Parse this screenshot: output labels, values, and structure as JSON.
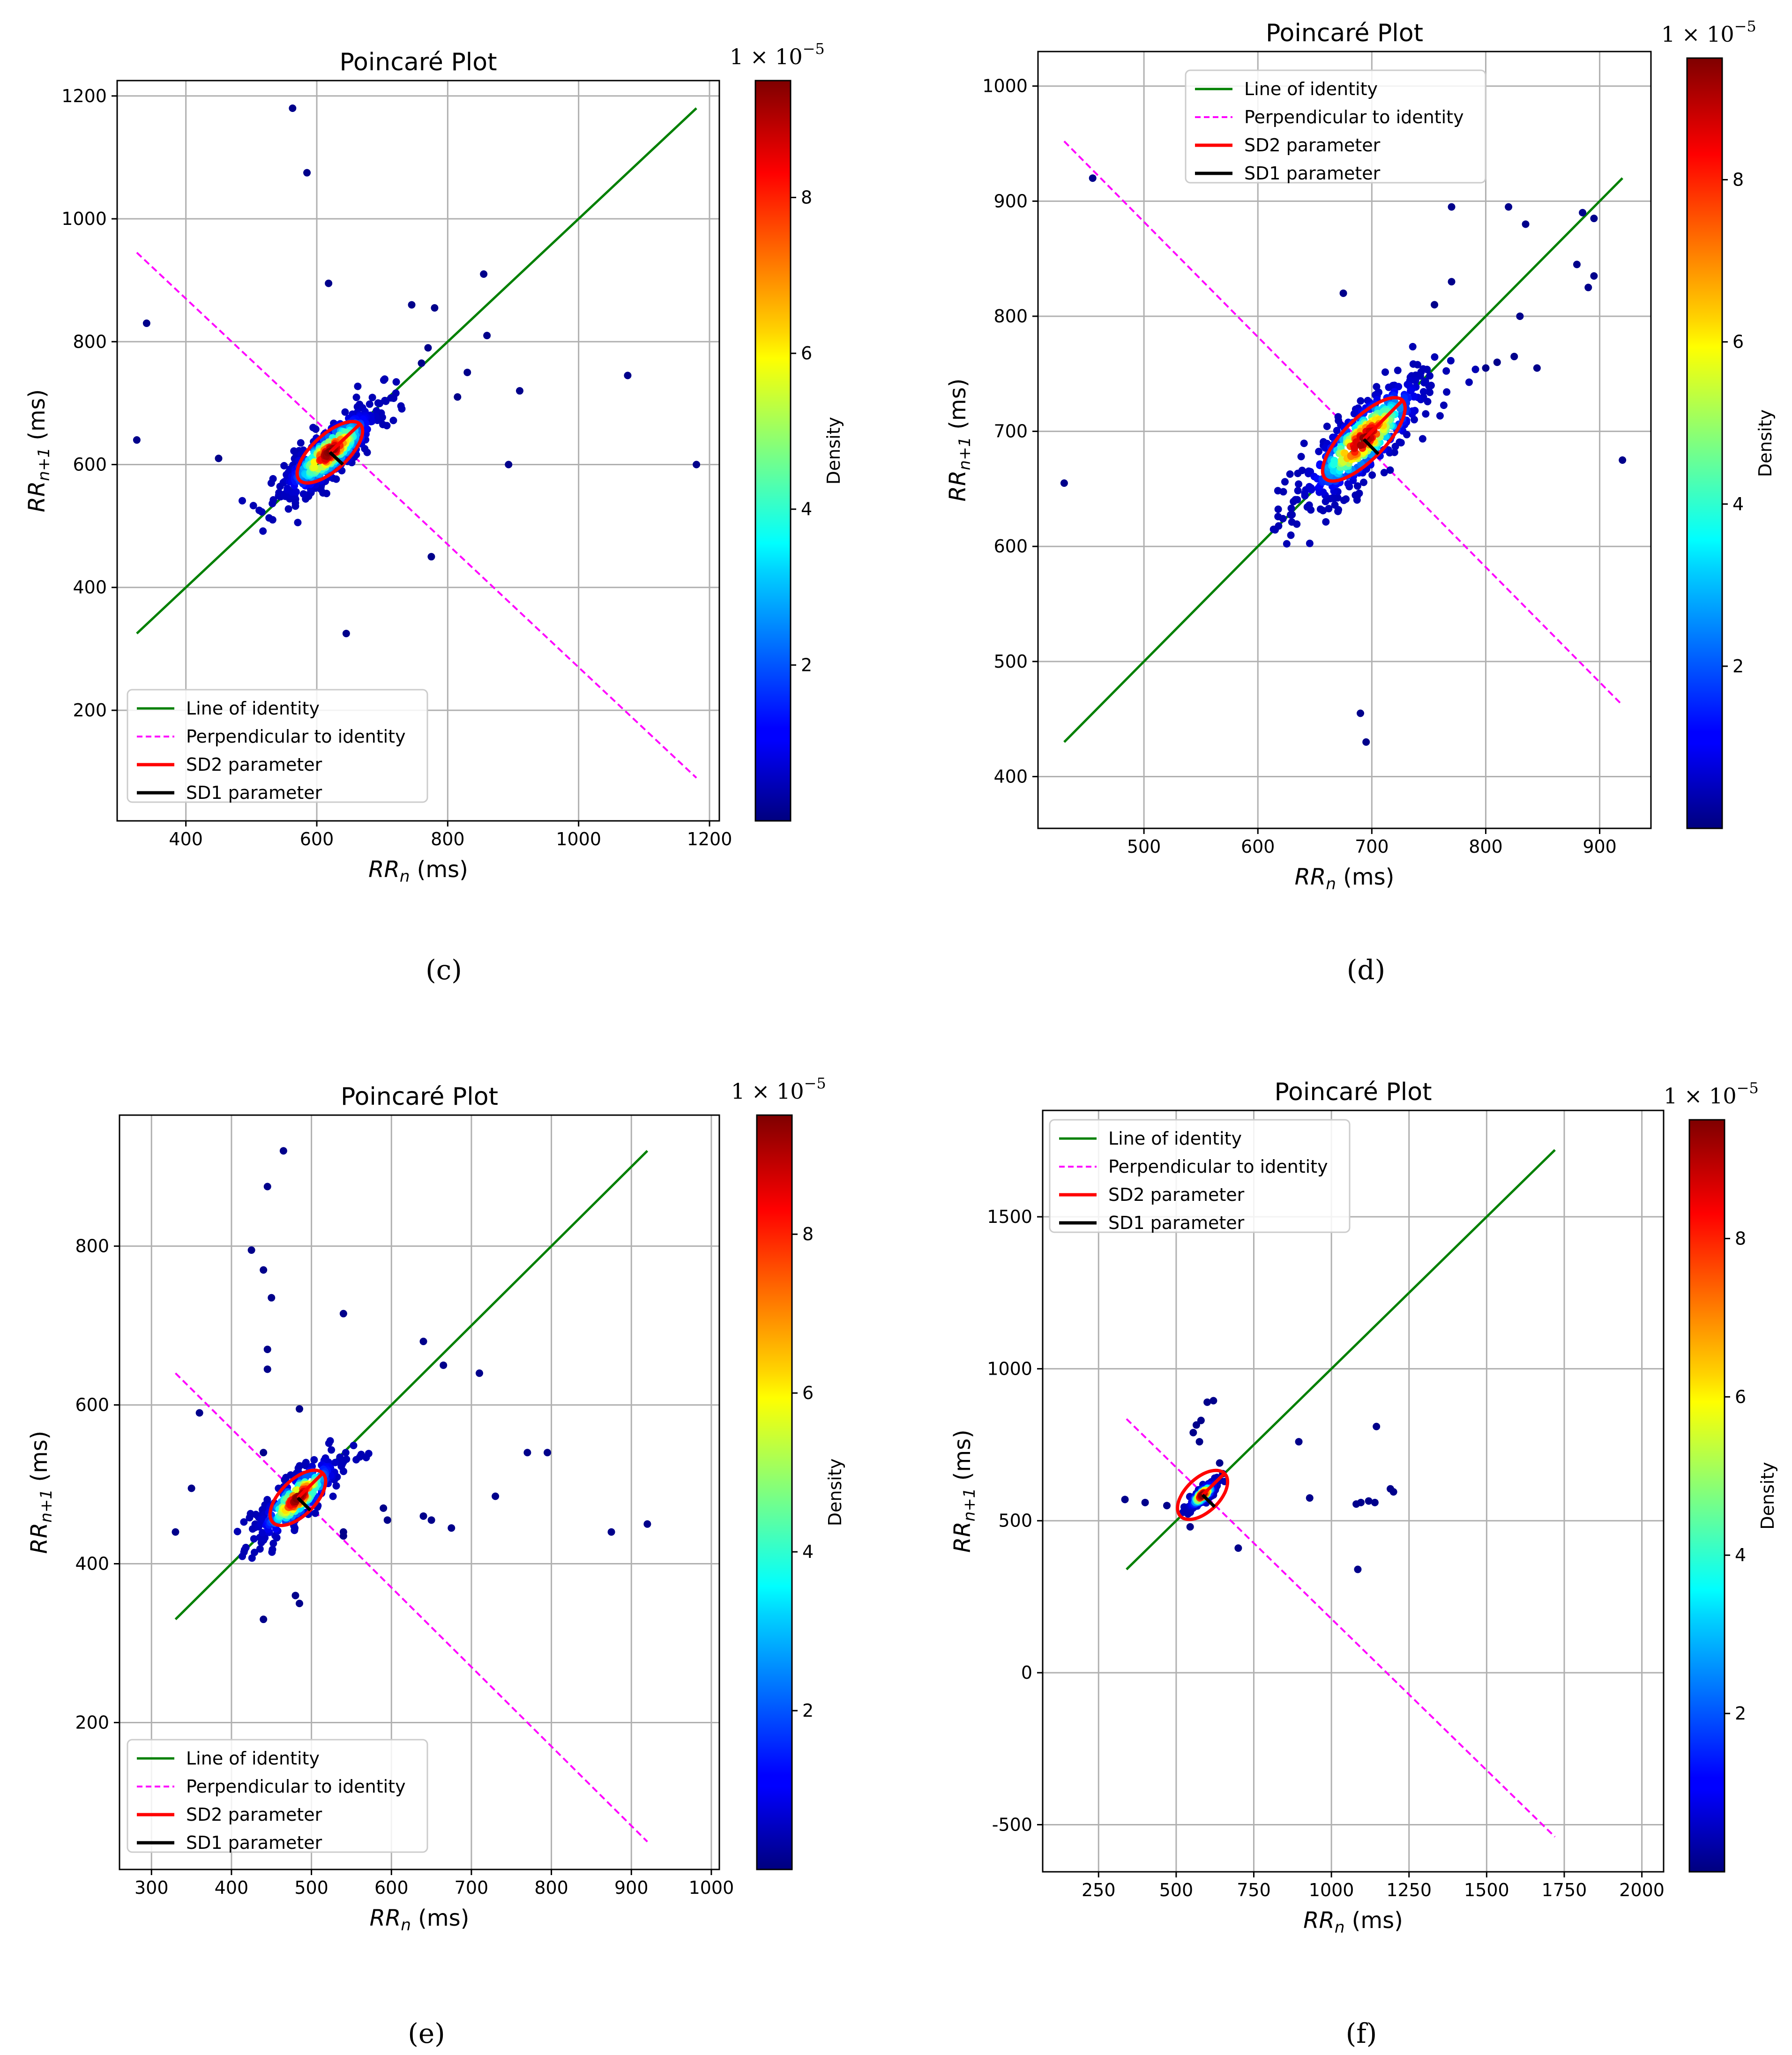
{
  "colorbar_ticks": [
    "2",
    "4",
    "6",
    "8"
  ],
  "colorbar_label": "Density",
  "colorbar_multiplier": "1 × 10",
  "colorbar_exponent": "−5",
  "chart_data": [
    {
      "type": "scatter",
      "panel_label": "(c)",
      "title": "Poincaré Plot",
      "xlabel_base": "RR",
      "xlabel_sub": "n",
      "xlabel_unit": " (ms)",
      "ylabel_base": "RR",
      "ylabel_sub": "n+1",
      "ylabel_unit": " (ms)",
      "xlim": [
        295,
        1215
      ],
      "ylim": [
        20,
        1225
      ],
      "xticks": [
        400,
        600,
        800,
        1000,
        1200
      ],
      "yticks": [
        200,
        400,
        600,
        800,
        1000,
        1200
      ],
      "grid": true,
      "legend_position": "lower left",
      "legend": [
        "Line of identity",
        "Perpendicular to identity",
        "SD2 parameter",
        "SD1 parameter"
      ],
      "identity_line": [
        [
          325,
          325
        ],
        [
          1180,
          1180
        ]
      ],
      "perpendicular_line": [
        [
          325,
          945
        ],
        [
          1180,
          90
        ]
      ],
      "center": [
        620,
        620
      ],
      "sd2": 65,
      "sd1": 28,
      "outliers": [
        [
          563,
          1180
        ],
        [
          585,
          1075
        ],
        [
          340,
          830
        ],
        [
          325,
          640
        ],
        [
          450,
          610
        ],
        [
          618,
          895
        ],
        [
          855,
          910
        ],
        [
          745,
          860
        ],
        [
          780,
          855
        ],
        [
          860,
          810
        ],
        [
          910,
          720
        ],
        [
          1075,
          745
        ],
        [
          1180,
          600
        ],
        [
          893,
          600
        ],
        [
          775,
          450
        ],
        [
          645,
          325
        ],
        [
          815,
          710
        ],
        [
          770,
          790
        ],
        [
          760,
          765
        ],
        [
          830,
          750
        ]
      ],
      "cluster": {
        "spread": 60,
        "count": 380
      }
    },
    {
      "type": "scatter",
      "panel_label": "(d)",
      "title": "Poincaré Plot",
      "xlabel_base": "RR",
      "xlabel_sub": "n",
      "xlabel_unit": " (ms)",
      "ylabel_base": "RR",
      "ylabel_sub": "n+1",
      "ylabel_unit": " (ms)",
      "xlim": [
        407,
        945
      ],
      "ylim": [
        355,
        1030
      ],
      "xticks": [
        500,
        600,
        700,
        800,
        900
      ],
      "yticks": [
        400,
        500,
        600,
        700,
        800,
        900,
        1000
      ],
      "grid": true,
      "legend_position": "upper center",
      "legend": [
        "Line of identity",
        "Perpendicular to identity",
        "SD2 parameter",
        "SD1 parameter"
      ],
      "identity_line": [
        [
          430,
          430
        ],
        [
          920,
          920
        ]
      ],
      "perpendicular_line": [
        [
          430,
          952
        ],
        [
          920,
          462
        ]
      ],
      "center": [
        693,
        693
      ],
      "sd2": 48,
      "sd1": 18,
      "outliers": [
        [
          455,
          920
        ],
        [
          430,
          655
        ],
        [
          770,
          895
        ],
        [
          820,
          895
        ],
        [
          835,
          880
        ],
        [
          885,
          890
        ],
        [
          895,
          885
        ],
        [
          880,
          845
        ],
        [
          890,
          825
        ],
        [
          895,
          835
        ],
        [
          920,
          675
        ],
        [
          770,
          830
        ],
        [
          675,
          820
        ],
        [
          830,
          800
        ],
        [
          845,
          755
        ],
        [
          825,
          765
        ],
        [
          690,
          455
        ],
        [
          695,
          430
        ],
        [
          755,
          810
        ],
        [
          800,
          755
        ],
        [
          810,
          760
        ]
      ],
      "cluster": {
        "spread": 45,
        "count": 420
      }
    },
    {
      "type": "scatter",
      "panel_label": "(e)",
      "title": "Poincaré Plot",
      "xlabel_base": "RR",
      "xlabel_sub": "n",
      "xlabel_unit": " (ms)",
      "ylabel_base": "RR",
      "ylabel_sub": "n+1",
      "ylabel_unit": " (ms)",
      "xlim": [
        260,
        1010
      ],
      "ylim": [
        15,
        965
      ],
      "xticks": [
        300,
        400,
        500,
        600,
        700,
        800,
        900,
        1000
      ],
      "yticks": [
        200,
        400,
        600,
        800
      ],
      "grid": true,
      "legend_position": "lower left",
      "legend": [
        "Line of identity",
        "Perpendicular to identity",
        "SD2 parameter",
        "SD1 parameter"
      ],
      "identity_line": [
        [
          330,
          330
        ],
        [
          920,
          920
        ]
      ],
      "perpendicular_line": [
        [
          330,
          640
        ],
        [
          920,
          50
        ]
      ],
      "center": [
        483,
        483
      ],
      "sd2": 44,
      "sd1": 22,
      "outliers": [
        [
          465,
          920
        ],
        [
          445,
          875
        ],
        [
          425,
          795
        ],
        [
          440,
          770
        ],
        [
          450,
          735
        ],
        [
          445,
          670
        ],
        [
          445,
          645
        ],
        [
          485,
          595
        ],
        [
          360,
          590
        ],
        [
          350,
          495
        ],
        [
          330,
          440
        ],
        [
          540,
          715
        ],
        [
          640,
          680
        ],
        [
          665,
          650
        ],
        [
          710,
          640
        ],
        [
          770,
          540
        ],
        [
          795,
          540
        ],
        [
          590,
          470
        ],
        [
          595,
          455
        ],
        [
          640,
          460
        ],
        [
          650,
          455
        ],
        [
          675,
          445
        ],
        [
          730,
          485
        ],
        [
          875,
          440
        ],
        [
          920,
          450
        ],
        [
          480,
          360
        ],
        [
          485,
          350
        ],
        [
          440,
          330
        ],
        [
          540,
          440
        ],
        [
          540,
          435
        ],
        [
          440,
          540
        ]
      ],
      "cluster": {
        "spread": 42,
        "count": 300
      }
    },
    {
      "type": "scatter",
      "panel_label": "(f)",
      "title": "Poincaré Plot",
      "xlabel_base": "RR",
      "xlabel_sub": "n",
      "xlabel_unit": " (ms)",
      "ylabel_base": "RR",
      "ylabel_sub": "n+1",
      "ylabel_unit": " (ms)",
      "xlim": [
        70,
        2070
      ],
      "ylim": [
        -655,
        1850
      ],
      "xticks": [
        250,
        500,
        750,
        1000,
        1250,
        1500,
        1750,
        2000
      ],
      "yticks": [
        -500,
        0,
        500,
        1000,
        1500
      ],
      "grid": true,
      "legend_position": "upper left",
      "legend": [
        "Line of identity",
        "Perpendicular to identity",
        "SD2 parameter",
        "SD1 parameter"
      ],
      "identity_line": [
        [
          340,
          340
        ],
        [
          1720,
          1720
        ]
      ],
      "perpendicular_line": [
        [
          340,
          835
        ],
        [
          1720,
          -540
        ]
      ],
      "center": [
        585,
        585
      ],
      "sd2": 100,
      "sd1": 55,
      "outliers": [
        [
          335,
          570
        ],
        [
          400,
          560
        ],
        [
          470,
          550
        ],
        [
          545,
          480
        ],
        [
          565,
          815
        ],
        [
          580,
          830
        ],
        [
          555,
          790
        ],
        [
          600,
          890
        ],
        [
          620,
          895
        ],
        [
          575,
          760
        ],
        [
          700,
          410
        ],
        [
          895,
          760
        ],
        [
          930,
          575
        ],
        [
          1085,
          340
        ],
        [
          1080,
          555
        ],
        [
          1095,
          560
        ],
        [
          1120,
          565
        ],
        [
          1145,
          810
        ],
        [
          1190,
          605
        ],
        [
          1200,
          595
        ],
        [
          1140,
          560
        ],
        [
          640,
          690
        ],
        [
          650,
          655
        ]
      ],
      "cluster": {
        "spread": 35,
        "count": 160
      }
    }
  ]
}
